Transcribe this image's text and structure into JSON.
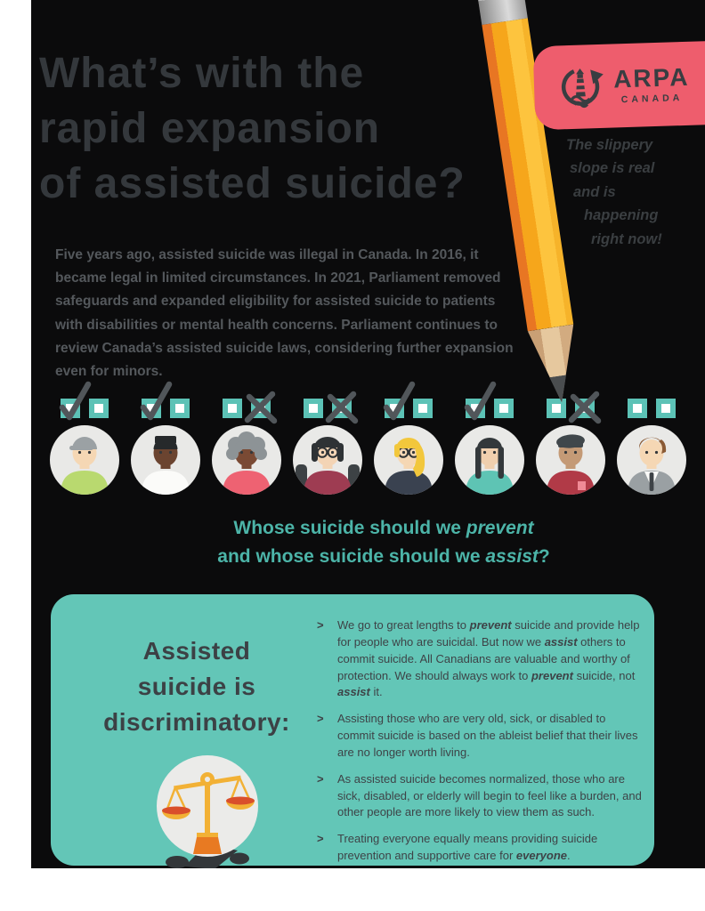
{
  "title": {
    "lines": [
      "What’s with the",
      "rapid expansion",
      "of assisted suicide?"
    ]
  },
  "badge": {
    "brand": "ARPA",
    "country": "CANADA",
    "icon": "arpa-lighthouse-icon",
    "bg": "#ee5d6d"
  },
  "tagline": {
    "lines": [
      "The slippery",
      "slope is real",
      "and is",
      "happening",
      "right now!"
    ]
  },
  "intro": {
    "text": "Five years ago, assisted suicide was illegal in Canada. In 2016, it became legal in limited circumstances. In 2021, Parliament removed safeguards and expanded eligibility for assisted suicide to patients with disabilities or mental health concerns. Parliament continues to review Canada’s assisted suicide laws, considering further expansion even for minors."
  },
  "question": {
    "lines": [
      [
        {
          "t": "Whose suicide should we "
        },
        {
          "t": "prevent",
          "em": true
        }
      ],
      [
        {
          "t": "and whose suicide should we "
        },
        {
          "t": "assist",
          "em": true
        },
        {
          "t": "?"
        }
      ]
    ],
    "color": "#4cb4a8"
  },
  "avatars": [
    {
      "name": "young-man-in-cap",
      "style": "cap",
      "glasses": false,
      "chair": false,
      "tie": false,
      "pocket": false,
      "prevent_box": "check",
      "assist_box": "none",
      "colors": {
        "skin": "#f5d7b4",
        "shirt": "#b9d96f",
        "hair": "#9ba1a4"
      }
    },
    {
      "name": "young-black-man",
      "style": "flat",
      "glasses": false,
      "chair": false,
      "tie": false,
      "pocket": false,
      "prevent_box": "check",
      "assist_box": "none",
      "colors": {
        "skin": "#6b4430",
        "shirt": "#fbfbf9",
        "hair": "#26292b"
      }
    },
    {
      "name": "elderly-woman-gray-hair",
      "style": "curly",
      "glasses": false,
      "chair": false,
      "tie": false,
      "pocket": false,
      "prevent_box": "none",
      "assist_box": "x",
      "colors": {
        "skin": "#7a4a34",
        "shirt": "#ee6272",
        "hair": "#8d9396"
      }
    },
    {
      "name": "woman-in-wheelchair",
      "style": "bob",
      "glasses": true,
      "chair": true,
      "tie": false,
      "pocket": false,
      "prevent_box": "none",
      "assist_box": "x",
      "colors": {
        "skin": "#f3d4b5",
        "shirt": "#9e3c52",
        "hair": "#2e3235"
      }
    },
    {
      "name": "blonde-woman-glasses",
      "style": "blonde",
      "glasses": true,
      "chair": false,
      "tie": false,
      "pocket": false,
      "prevent_box": "check",
      "assist_box": "none",
      "colors": {
        "skin": "#f5d7b4",
        "shirt": "#3a4250",
        "hair": "#f2c73c"
      }
    },
    {
      "name": "woman-with-braids",
      "style": "braids",
      "glasses": false,
      "chair": false,
      "tie": false,
      "pocket": false,
      "prevent_box": "check",
      "assist_box": "none",
      "colors": {
        "skin": "#f0cfae",
        "shirt": "#5ec4b4",
        "hair": "#33383b"
      }
    },
    {
      "name": "older-man-flat-cap",
      "style": "flatcap",
      "glasses": false,
      "chair": false,
      "tie": false,
      "pocket": true,
      "prevent_box": "none",
      "assist_box": "x",
      "colors": {
        "skin": "#c49a76",
        "shirt": "#b13a47",
        "hair": "#40474b"
      }
    },
    {
      "name": "young-man-suit",
      "style": "swoop",
      "glasses": false,
      "chair": false,
      "tie": true,
      "pocket": false,
      "prevent_box": "none",
      "assist_box": "none",
      "colors": {
        "skin": "#f5d7b4",
        "shirt": "#9aa0a3",
        "hair": "#8a5a35"
      }
    }
  ],
  "panel": {
    "bg": "#63c6b7",
    "heading_lines": [
      "Assisted",
      "suicide is",
      "discriminatory:"
    ],
    "icon": "scales-of-justice-icon",
    "marker": ">",
    "bullets": [
      {
        "segments": [
          {
            "t": "We go to great lengths to "
          },
          {
            "t": "prevent",
            "em": true
          },
          {
            "t": " suicide and provide help for people who are suicidal. But now we "
          },
          {
            "t": "assist",
            "em": true
          },
          {
            "t": " others to commit suicide. All Canadians are valuable and worthy of protection. We should always work to "
          },
          {
            "t": "prevent",
            "em": true
          },
          {
            "t": " suicide, not "
          },
          {
            "t": "assist",
            "em": true
          },
          {
            "t": " it."
          }
        ]
      },
      {
        "segments": [
          {
            "t": "Assisting those who are very old, sick, or disabled to commit suicide is based on the ableist belief that their lives are no longer worth living."
          }
        ]
      },
      {
        "segments": [
          {
            "t": "As assisted suicide becomes normalized, those who are sick, disabled, or elderly will begin to feel like a burden, and other people are more likely to view them as such."
          }
        ]
      },
      {
        "segments": [
          {
            "t": "Treating everyone equally means providing suicide prevention and supportive care for "
          },
          {
            "t": "everyone",
            "em": true
          },
          {
            "t": "."
          }
        ]
      }
    ]
  },
  "colors": {
    "background": "#0b0b0c",
    "page_margin": "#ffffff",
    "title_gray": "#34383c",
    "body_gray": "#54585c",
    "teal_accent": "#4cb4a8",
    "panel_teal": "#63c6b7",
    "checkbox_teal": "#5cc2b6",
    "mark_gray": "#51565a",
    "badge_pink": "#ee5d6d",
    "pencil_yellow": "#f6a61b",
    "pencil_orange": "#e87623"
  }
}
